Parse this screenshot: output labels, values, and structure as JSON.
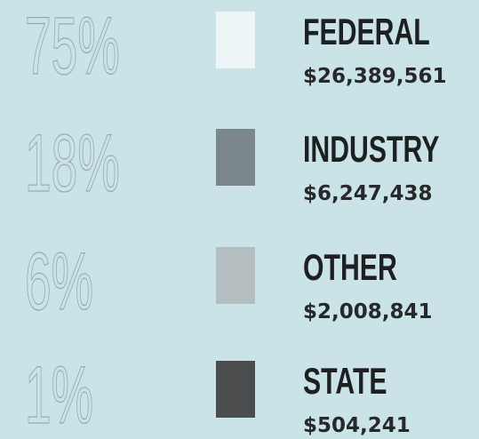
{
  "items": [
    {
      "percent": "75%",
      "label": "FEDERAL",
      "amount": "$26,389,561",
      "color": "#eef5f6"
    },
    {
      "percent": "18%",
      "label": "INDUSTRY",
      "amount": "$6,247,438",
      "color": "#7b878b"
    },
    {
      "percent": "6%",
      "label": "OTHER",
      "amount": "$2,008,841",
      "color": "#b4bdbf"
    },
    {
      "percent": "1%",
      "label": "STATE",
      "amount": "$504,241",
      "color": "#4b4d4f"
    }
  ]
}
